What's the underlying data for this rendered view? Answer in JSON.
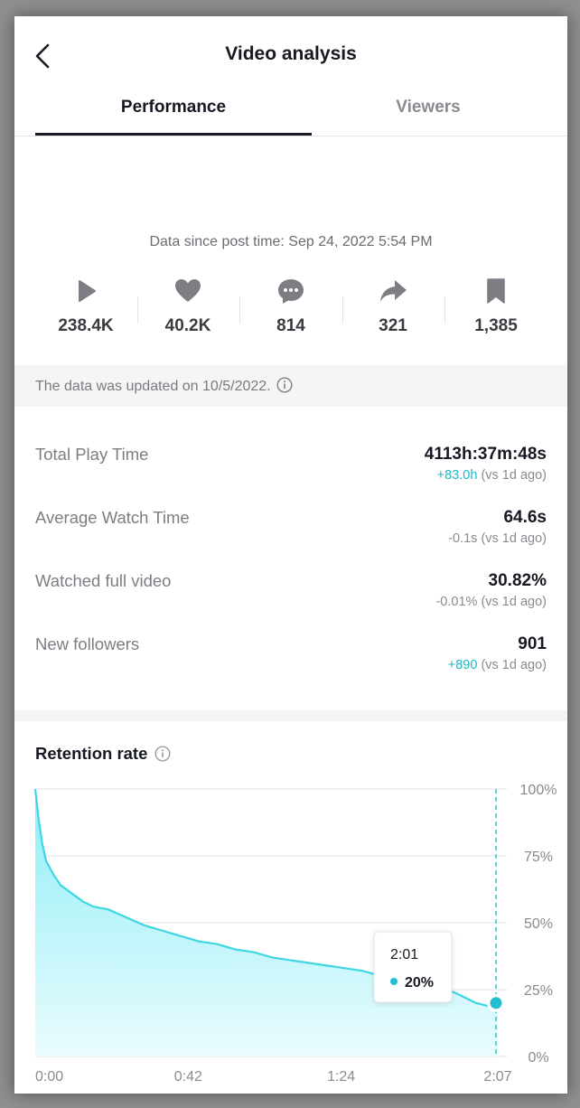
{
  "header": {
    "title": "Video analysis"
  },
  "tabs": [
    {
      "label": "Performance",
      "active": true
    },
    {
      "label": "Viewers",
      "active": false
    }
  ],
  "summary": {
    "since": "Data since post time: Sep 24, 2022 5:54 PM",
    "stats": [
      {
        "icon": "play-icon",
        "value": "238.4K"
      },
      {
        "icon": "heart-icon",
        "value": "40.2K"
      },
      {
        "icon": "comment-icon",
        "value": "814"
      },
      {
        "icon": "share-icon",
        "value": "321"
      },
      {
        "icon": "bookmark-icon",
        "value": "1,385"
      }
    ]
  },
  "updated": {
    "text": "The data was updated on 10/5/2022."
  },
  "metrics": [
    {
      "label": "Total Play Time",
      "value": "4113h:37m:48s",
      "delta": "+83.0h",
      "delta_suffix": "(vs 1d ago)",
      "delta_positive": true
    },
    {
      "label": "Average Watch Time",
      "value": "64.6s",
      "delta": "-0.1s",
      "delta_suffix": "(vs 1d ago)",
      "delta_positive": false
    },
    {
      "label": "Watched full video",
      "value": "30.82%",
      "delta": "-0.01%",
      "delta_suffix": "(vs 1d ago)",
      "delta_positive": false
    },
    {
      "label": "New followers",
      "value": "901",
      "delta": "+890",
      "delta_suffix": "(vs 1d ago)",
      "delta_positive": true
    }
  ],
  "retention": {
    "title": "Retention rate",
    "tooltip": {
      "time": "2:01",
      "value": "20%"
    }
  },
  "colors": {
    "accent": "#20b6c3",
    "fill": "#b9f3f8",
    "text": "#161823"
  },
  "chart_data": {
    "type": "area",
    "title": "Retention rate",
    "xlabel": "",
    "ylabel": "",
    "x_unit": "seconds",
    "xlim": [
      0,
      127
    ],
    "ylim": [
      0,
      100
    ],
    "x_ticks": [
      {
        "value": 0,
        "label": "0:00"
      },
      {
        "value": 42,
        "label": "0:42"
      },
      {
        "value": 84,
        "label": "1:24"
      },
      {
        "value": 127,
        "label": "2:07"
      }
    ],
    "y_ticks": [
      {
        "value": 0,
        "label": "0%"
      },
      {
        "value": 25,
        "label": "25%"
      },
      {
        "value": 50,
        "label": "50%"
      },
      {
        "value": 75,
        "label": "75%"
      },
      {
        "value": 100,
        "label": "100%"
      }
    ],
    "grid": true,
    "x": [
      0,
      1,
      2,
      3,
      5,
      7,
      10,
      13,
      16,
      20,
      25,
      30,
      35,
      40,
      45,
      50,
      55,
      60,
      65,
      70,
      75,
      80,
      85,
      90,
      95,
      100,
      105,
      110,
      115,
      121,
      124,
      127
    ],
    "values": [
      100,
      88,
      79,
      73,
      68,
      64,
      61,
      58,
      56,
      55,
      52,
      49,
      47,
      45,
      43,
      42,
      40,
      39,
      37,
      36,
      35,
      34,
      33,
      32,
      30,
      29,
      27,
      26,
      24,
      20,
      19,
      18
    ],
    "highlight": {
      "x": 121,
      "y": 20,
      "label_time": "2:01",
      "label_value": "20%"
    }
  }
}
